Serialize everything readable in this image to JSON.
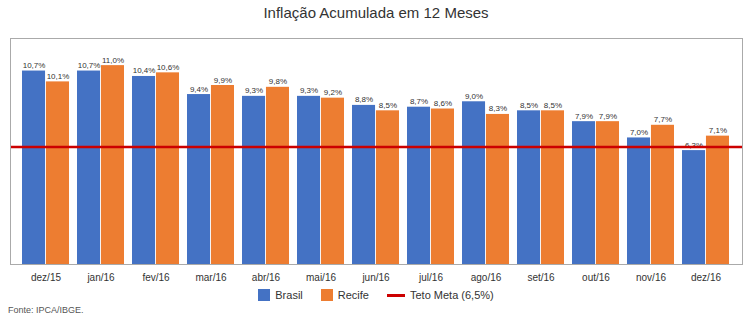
{
  "chart_data": {
    "type": "bar",
    "title": "Inflação Acumulada em 12 Meses",
    "categories": [
      "dez/15",
      "jan/16",
      "fev/16",
      "mar/16",
      "abr/16",
      "mai/16",
      "jun/16",
      "jul/16",
      "ago/16",
      "set/16",
      "out/16",
      "nov/16",
      "dez/16"
    ],
    "series": [
      {
        "name": "Brasil",
        "color": "#4472C4",
        "values": [
          10.7,
          10.7,
          10.4,
          9.4,
          9.3,
          9.3,
          8.8,
          8.7,
          9.0,
          8.5,
          7.9,
          7.0,
          6.3
        ],
        "value_labels": [
          "10,7%",
          "10,7%",
          "10,4%",
          "9,4%",
          "9,3%",
          "9,3%",
          "8,8%",
          "8,7%",
          "9,0%",
          "8,5%",
          "7,9%",
          "7,0%",
          "6,3%"
        ]
      },
      {
        "name": "Recife",
        "color": "#ED7D31",
        "values": [
          10.1,
          11.0,
          10.6,
          9.9,
          9.8,
          9.2,
          8.5,
          8.6,
          8.3,
          8.5,
          7.9,
          7.7,
          7.1
        ],
        "value_labels": [
          "10,1%",
          "11,0%",
          "10,6%",
          "9,9%",
          "9,8%",
          "9,2%",
          "8,5%",
          "8,6%",
          "8,3%",
          "8,5%",
          "7,9%",
          "7,7%",
          "7,1%"
        ]
      }
    ],
    "reference_lines": [
      {
        "name": "Teto Meta (6,5%)",
        "value": 6.5,
        "color": "#CC0000"
      }
    ],
    "caption": "Fonte: IPCA/IBGE.",
    "ylim": [
      0,
      12.5
    ],
    "data_labels": true,
    "tick_labels": "x",
    "grid": false,
    "legend": "bottom"
  }
}
